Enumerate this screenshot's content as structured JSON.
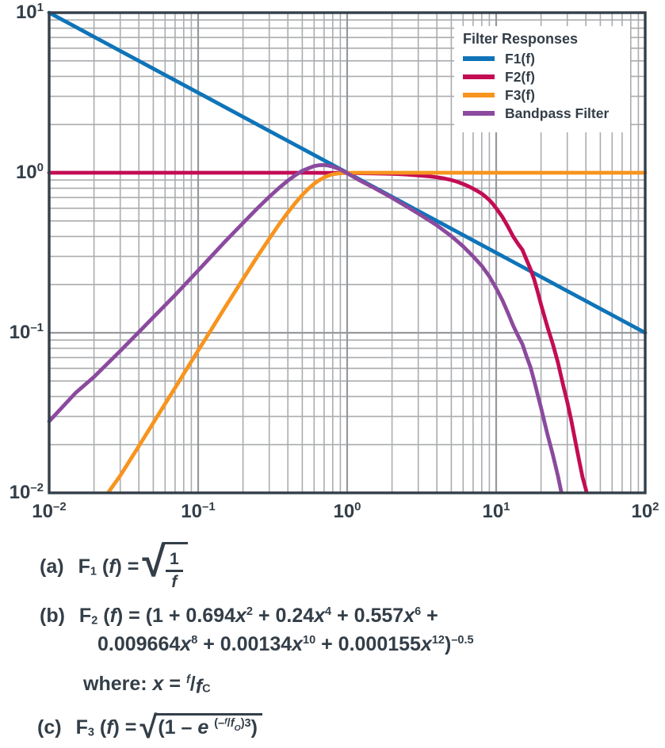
{
  "chart_data": {
    "type": "line",
    "title": "",
    "x_axis": {
      "scale": "log",
      "min": 0.01,
      "max": 100,
      "ticks": [
        {
          "base": "10",
          "exp": "–2",
          "value": 0.01
        },
        {
          "base": "10",
          "exp": "–1",
          "value": 0.1
        },
        {
          "base": "10",
          "exp": "0",
          "value": 1
        },
        {
          "base": "10",
          "exp": "1",
          "value": 10
        },
        {
          "base": "10",
          "exp": "2",
          "value": 100
        }
      ]
    },
    "y_axis": {
      "scale": "log",
      "min": 0.01,
      "max": 10,
      "ticks": [
        {
          "base": "10",
          "exp": "1",
          "value": 10
        },
        {
          "base": "10",
          "exp": "0",
          "value": 1
        },
        {
          "base": "10",
          "exp": "–1",
          "value": 0.1
        },
        {
          "base": "10",
          "exp": "–2",
          "value": 0.01
        }
      ]
    },
    "grid": {
      "minor": true,
      "major": true,
      "minor_color": "#aaacaf",
      "major_color": "#97999d"
    },
    "frame_color": "#333e48",
    "legend": {
      "title": "Filter Responses",
      "position": "top-right"
    },
    "series": [
      {
        "name": "F1(f)",
        "color": "#0f74b8",
        "points": [
          [
            0.01,
            10
          ],
          [
            0.03,
            5.774
          ],
          [
            0.1,
            3.162
          ],
          [
            0.3,
            1.826
          ],
          [
            1,
            1
          ],
          [
            3,
            0.5774
          ],
          [
            10,
            0.3162
          ],
          [
            30,
            0.1826
          ],
          [
            100,
            0.1
          ]
        ]
      },
      {
        "name": "F2(f)",
        "color": "#c30c54",
        "points": [
          [
            0.01,
            1
          ],
          [
            0.1,
            1
          ],
          [
            0.5,
            1
          ],
          [
            1,
            0.996
          ],
          [
            1.5,
            0.991
          ],
          [
            2,
            0.985
          ],
          [
            2.5,
            0.975
          ],
          [
            3,
            0.963
          ],
          [
            3.5,
            0.951
          ],
          [
            4,
            0.937
          ],
          [
            4.5,
            0.92
          ],
          [
            5,
            0.9
          ],
          [
            5.5,
            0.877
          ],
          [
            6,
            0.851
          ],
          [
            6.5,
            0.824
          ],
          [
            7,
            0.795
          ],
          [
            7.5,
            0.768
          ],
          [
            8,
            0.74
          ],
          [
            8.5,
            0.708
          ],
          [
            9,
            0.675
          ],
          [
            9.5,
            0.638
          ],
          [
            10,
            0.6
          ],
          [
            11,
            0.53
          ],
          [
            12,
            0.46
          ],
          [
            13,
            0.4
          ],
          [
            14,
            0.36
          ],
          [
            15,
            0.33
          ],
          [
            16,
            0.285
          ],
          [
            17,
            0.25
          ],
          [
            18,
            0.215
          ],
          [
            19,
            0.18
          ],
          [
            20,
            0.15
          ],
          [
            22,
            0.11
          ],
          [
            24,
            0.085
          ],
          [
            26,
            0.065
          ],
          [
            28,
            0.048
          ],
          [
            30,
            0.037
          ],
          [
            32,
            0.028
          ],
          [
            34,
            0.021
          ],
          [
            36,
            0.016
          ],
          [
            38,
            0.0125
          ],
          [
            40,
            0.0105
          ],
          [
            42,
            0.0085
          ],
          [
            44,
            0.007
          ]
        ]
      },
      {
        "name": "F3(f)",
        "color": "#f7941e",
        "points": [
          [
            0.0248,
            0.01
          ],
          [
            0.03,
            0.0128
          ],
          [
            0.04,
            0.0196
          ],
          [
            0.05,
            0.0274
          ],
          [
            0.06,
            0.036
          ],
          [
            0.07,
            0.0453
          ],
          [
            0.08,
            0.0554
          ],
          [
            0.1,
            0.0775
          ],
          [
            0.12,
            0.1016
          ],
          [
            0.15,
            0.142
          ],
          [
            0.2,
            0.2167
          ],
          [
            0.25,
            0.3
          ],
          [
            0.3,
            0.387
          ],
          [
            0.35,
            0.478
          ],
          [
            0.4,
            0.565
          ],
          [
            0.45,
            0.649
          ],
          [
            0.5,
            0.727
          ],
          [
            0.55,
            0.795
          ],
          [
            0.6,
            0.853
          ],
          [
            0.65,
            0.898
          ],
          [
            0.7,
            0.934
          ],
          [
            0.75,
            0.96
          ],
          [
            0.8,
            0.977
          ],
          [
            0.9,
            0.994
          ],
          [
            1,
            0.999
          ],
          [
            1.2,
            1
          ],
          [
            100,
            1
          ]
        ]
      },
      {
        "name": "Bandpass Filter",
        "color": "#8b4a9e",
        "points": [
          [
            0.01,
            0.028
          ],
          [
            0.015,
            0.042
          ],
          [
            0.02,
            0.053
          ],
          [
            0.03,
            0.077
          ],
          [
            0.04,
            0.101
          ],
          [
            0.05,
            0.125
          ],
          [
            0.07,
            0.172
          ],
          [
            0.1,
            0.245
          ],
          [
            0.15,
            0.368
          ],
          [
            0.2,
            0.485
          ],
          [
            0.25,
            0.6
          ],
          [
            0.3,
            0.707
          ],
          [
            0.35,
            0.805
          ],
          [
            0.4,
            0.893
          ],
          [
            0.45,
            0.968
          ],
          [
            0.5,
            1.028
          ],
          [
            0.55,
            1.066
          ],
          [
            0.6,
            1.101
          ],
          [
            0.65,
            1.115
          ],
          [
            0.7,
            1.117
          ],
          [
            0.75,
            1.108
          ],
          [
            0.8,
            1.092
          ],
          [
            0.9,
            1.047
          ],
          [
            1,
            0.994
          ],
          [
            1.2,
            0.9
          ],
          [
            1.5,
            0.809
          ],
          [
            2,
            0.697
          ],
          [
            2.5,
            0.617
          ],
          [
            3,
            0.556
          ],
          [
            4,
            0.469
          ],
          [
            5,
            0.402
          ],
          [
            6,
            0.347
          ],
          [
            7,
            0.3
          ],
          [
            8,
            0.262
          ],
          [
            9,
            0.225
          ],
          [
            10,
            0.19
          ],
          [
            11,
            0.16
          ],
          [
            12,
            0.133
          ],
          [
            13,
            0.111
          ],
          [
            14,
            0.096
          ],
          [
            15,
            0.085
          ],
          [
            16,
            0.071
          ],
          [
            17,
            0.061
          ],
          [
            18,
            0.05
          ],
          [
            19,
            0.041
          ],
          [
            20,
            0.034
          ],
          [
            22,
            0.0235
          ],
          [
            24,
            0.0173
          ],
          [
            26,
            0.0127
          ],
          [
            28,
            0.0091
          ],
          [
            30,
            0.0068
          ]
        ]
      }
    ]
  },
  "formulas": {
    "a": {
      "label": "(a)",
      "lhs": [
        {
          "t": "F"
        },
        {
          "t": "1",
          "cls": "sub"
        },
        {
          "t": " ("
        },
        {
          "t": "f",
          "cls": "i"
        },
        {
          "t": ") = "
        }
      ],
      "frac_num": "1",
      "frac_den": "f"
    },
    "b": {
      "label": "(b)",
      "line1": [
        {
          "t": "F"
        },
        {
          "t": "2",
          "cls": "sub"
        },
        {
          "t": " ("
        },
        {
          "t": "f",
          "cls": "i"
        },
        {
          "t": ") = (1 + 0.694"
        },
        {
          "t": "x",
          "cls": "i"
        },
        {
          "t": "2",
          "cls": "sup"
        },
        {
          "t": " + 0.24"
        },
        {
          "t": "x",
          "cls": "i"
        },
        {
          "t": "4",
          "cls": "sup"
        },
        {
          "t": " + 0.557"
        },
        {
          "t": "x",
          "cls": "i"
        },
        {
          "t": "6",
          "cls": "sup"
        },
        {
          "t": " +"
        }
      ],
      "line2": [
        {
          "t": "0.009664"
        },
        {
          "t": "x",
          "cls": "i"
        },
        {
          "t": "8",
          "cls": "sup"
        },
        {
          "t": " + 0.00134"
        },
        {
          "t": "x",
          "cls": "i"
        },
        {
          "t": "10",
          "cls": "sup"
        },
        {
          "t": " + 0.000155"
        },
        {
          "t": "x",
          "cls": "i"
        },
        {
          "t": "12",
          "cls": "sup"
        },
        {
          "t": ")"
        },
        {
          "t": "–0.5",
          "cls": "sup"
        }
      ]
    },
    "where": [
      {
        "t": "where: "
      },
      {
        "t": "x",
        "cls": "i"
      },
      {
        "t": " = "
      },
      {
        "t": "f",
        "cls": "sup i"
      },
      {
        "t": "/"
      },
      {
        "t": "f",
        "cls": "i dn"
      },
      {
        "t": "C",
        "cls": "sub"
      }
    ],
    "c": {
      "label": "(c)",
      "lhs": [
        {
          "t": "F"
        },
        {
          "t": "3",
          "cls": "sub"
        },
        {
          "t": " ("
        },
        {
          "t": "f",
          "cls": "i"
        },
        {
          "t": ") = "
        }
      ],
      "body": [
        {
          "t": "(1 – "
        },
        {
          "t": "e",
          "cls": "i"
        },
        {
          "t": " "
        },
        {
          "t": "(–",
          "cls": "sup"
        },
        {
          "t": "f",
          "cls": "supt i"
        },
        {
          "t": "/",
          "cls": "sup"
        },
        {
          "t": "f",
          "cls": "sup i"
        },
        {
          "t": "O",
          "cls": "sups i"
        },
        {
          "t": ")3",
          "cls": "sup"
        },
        {
          "t": ")"
        }
      ]
    }
  }
}
